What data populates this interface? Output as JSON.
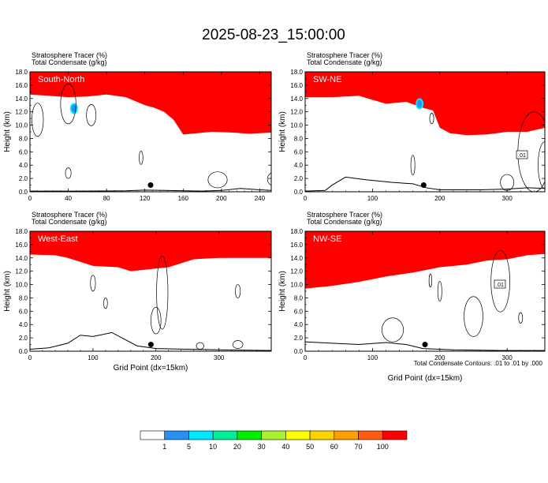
{
  "title": "2025-08-23_15:00:00",
  "colors": {
    "levels": [
      "#ffffff",
      "#2a8ff5",
      "#00e8ff",
      "#00ee96",
      "#00ee00",
      "#a8f032",
      "#ffff00",
      "#ffd200",
      "#ffa000",
      "#ff5a14",
      "#ff0000"
    ]
  },
  "colorbar": {
    "labels": [
      "1",
      "5",
      "10",
      "20",
      "30",
      "40",
      "50",
      "60",
      "70",
      "100"
    ]
  },
  "footnote": "Total Condensate Contours: .01 to .01 by .000",
  "chart_data": [
    {
      "type": "heatmap",
      "line1": "Stratosphere Tracer   (%)",
      "line2": "Total Condensate   (g/kg)",
      "panel_label": "South-North",
      "ylabel": "Height (km)",
      "xlabel": "",
      "xlim": [
        0,
        252
      ],
      "ylim": [
        0,
        18
      ],
      "xticks": [
        "0",
        "40",
        "80",
        "120",
        "160",
        "200",
        "240"
      ],
      "yticks": [
        "0.0",
        "2.0",
        "4.0",
        "6.0",
        "8.0",
        "10.0",
        "12.0",
        "14.0",
        "16.0",
        "18.0"
      ],
      "tropopause_km": [
        [
          0,
          16.2
        ],
        [
          20,
          16.0
        ],
        [
          40,
          15.8
        ],
        [
          60,
          15.9
        ],
        [
          80,
          16.2
        ],
        [
          100,
          15.8
        ],
        [
          120,
          14.6
        ],
        [
          130,
          14.2
        ],
        [
          140,
          13.6
        ],
        [
          150,
          12.4
        ],
        [
          160,
          10.2
        ],
        [
          175,
          10.4
        ],
        [
          190,
          10.6
        ],
        [
          210,
          10.5
        ],
        [
          230,
          10.3
        ],
        [
          252,
          10.5
        ]
      ],
      "terrain_km": [
        [
          0,
          0.1
        ],
        [
          60,
          0.1
        ],
        [
          100,
          0.15
        ],
        [
          120,
          0.25
        ],
        [
          140,
          0.2
        ],
        [
          180,
          0.1
        ],
        [
          200,
          0.2
        ],
        [
          220,
          0.5
        ],
        [
          240,
          0.3
        ],
        [
          252,
          0.2
        ]
      ],
      "peak_marker": [
        126,
        1.0
      ],
      "tracer_blob": [
        46,
        12.5
      ],
      "contour_label": ""
    },
    {
      "type": "heatmap",
      "line1": "Stratosphere Tracer   (%)",
      "line2": "Total Condensate   (g/kg)",
      "panel_label": "SW-NE",
      "ylabel": "Height (km)",
      "xlabel": "",
      "xlim": [
        0,
        356
      ],
      "ylim": [
        0,
        18
      ],
      "xticks": [
        "0",
        "100",
        "200",
        "300"
      ],
      "yticks": [
        "0.0",
        "2.0",
        "4.0",
        "6.0",
        "8.0",
        "10.0",
        "12.0",
        "14.0",
        "16.0",
        "18.0"
      ],
      "tropopause_km": [
        [
          0,
          15.8
        ],
        [
          40,
          15.8
        ],
        [
          80,
          16.0
        ],
        [
          100,
          15.4
        ],
        [
          120,
          14.8
        ],
        [
          150,
          15.1
        ],
        [
          175,
          14.2
        ],
        [
          190,
          13.8
        ],
        [
          200,
          11.2
        ],
        [
          215,
          10.4
        ],
        [
          240,
          10.1
        ],
        [
          270,
          10.2
        ],
        [
          300,
          10.6
        ],
        [
          330,
          10.6
        ],
        [
          356,
          11.2
        ]
      ],
      "terrain_km": [
        [
          0,
          0.1
        ],
        [
          30,
          0.2
        ],
        [
          40,
          1.0
        ],
        [
          60,
          2.2
        ],
        [
          90,
          1.8
        ],
        [
          130,
          1.4
        ],
        [
          160,
          1.2
        ],
        [
          180,
          0.6
        ],
        [
          200,
          0.3
        ],
        [
          260,
          0.3
        ],
        [
          300,
          0.4
        ],
        [
          330,
          0.6
        ],
        [
          356,
          0.5
        ]
      ],
      "peak_marker": [
        176,
        1.0
      ],
      "tracer_blob": [
        170,
        13.2
      ],
      "contour_label": ".01"
    },
    {
      "type": "heatmap",
      "line1": "Stratosphere Tracer   (%)",
      "line2": "Total Condensate   (g/kg)",
      "panel_label": "West-East",
      "ylabel": "Height (km)",
      "xlabel": "Grid Point (dx=15km)",
      "xlim": [
        0,
        383
      ],
      "ylim": [
        0,
        18
      ],
      "xticks": [
        "0",
        "100",
        "200",
        "300"
      ],
      "yticks": [
        "0.0",
        "2.0",
        "4.0",
        "6.0",
        "8.0",
        "10.0",
        "12.0",
        "14.0",
        "16.0",
        "18.0"
      ],
      "tropopause_km": [
        [
          0,
          16.1
        ],
        [
          40,
          16.0
        ],
        [
          60,
          15.6
        ],
        [
          100,
          14.4
        ],
        [
          140,
          14.2
        ],
        [
          160,
          13.6
        ],
        [
          180,
          13.8
        ],
        [
          200,
          14.0
        ],
        [
          220,
          14.2
        ],
        [
          260,
          15.4
        ],
        [
          300,
          15.6
        ],
        [
          340,
          15.6
        ],
        [
          383,
          15.6
        ]
      ],
      "terrain_km": [
        [
          0,
          0.3
        ],
        [
          30,
          0.5
        ],
        [
          60,
          1.2
        ],
        [
          80,
          2.4
        ],
        [
          100,
          2.2
        ],
        [
          130,
          2.8
        ],
        [
          150,
          1.8
        ],
        [
          170,
          0.8
        ],
        [
          200,
          0.4
        ],
        [
          250,
          0.3
        ],
        [
          300,
          0.2
        ],
        [
          383,
          0.1
        ]
      ],
      "peak_marker": [
        192,
        1.0
      ],
      "tracer_blob": null,
      "contour_label": ""
    },
    {
      "type": "heatmap",
      "line1": "Stratosphere Tracer   (%)",
      "line2": "Total Condensate   (g/kg)",
      "panel_label": "NW-SE",
      "ylabel": "Height (km)",
      "xlabel": "Grid Point (dx=15km)",
      "xlim": [
        0,
        356
      ],
      "ylim": [
        0,
        18
      ],
      "xticks": [
        "0",
        "100",
        "200",
        "300"
      ],
      "yticks": [
        "0.0",
        "2.0",
        "4.0",
        "6.0",
        "8.0",
        "10.0",
        "12.0",
        "14.0",
        "16.0",
        "18.0"
      ],
      "tropopause_km": [
        [
          0,
          11.0
        ],
        [
          40,
          11.4
        ],
        [
          80,
          12.0
        ],
        [
          120,
          12.8
        ],
        [
          160,
          13.4
        ],
        [
          200,
          14.2
        ],
        [
          240,
          14.6
        ],
        [
          270,
          15.2
        ],
        [
          300,
          15.4
        ],
        [
          330,
          16.0
        ],
        [
          356,
          16.2
        ]
      ],
      "terrain_km": [
        [
          0,
          1.4
        ],
        [
          40,
          1.2
        ],
        [
          80,
          1.0
        ],
        [
          120,
          1.3
        ],
        [
          150,
          1.0
        ],
        [
          175,
          0.4
        ],
        [
          220,
          0.2
        ],
        [
          300,
          0.1
        ],
        [
          356,
          0.1
        ]
      ],
      "peak_marker": [
        178,
        1.0
      ],
      "tracer_blob": null,
      "contour_label": ".01"
    }
  ]
}
